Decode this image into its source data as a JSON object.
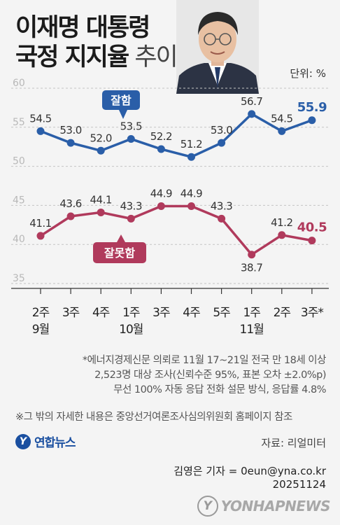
{
  "title": {
    "line1": "이재명 대통령",
    "line2_bold": "국정 지지율",
    "line2_light": "추이"
  },
  "unit": "단위: %",
  "chart_data": {
    "type": "line",
    "categories": [
      "2주",
      "3주",
      "4주",
      "1주",
      "3주",
      "4주",
      "5주",
      "1주",
      "2주",
      "3주*"
    ],
    "month_labels": [
      {
        "label": "9월",
        "index": 0
      },
      {
        "label": "10월",
        "index": 3
      },
      {
        "label": "11월",
        "index": 7
      }
    ],
    "y_ticks": [
      60,
      55,
      50,
      45,
      40,
      35
    ],
    "ylim": [
      35,
      60
    ],
    "grid": "dashed horizontal",
    "series": [
      {
        "name": "잘함",
        "color": "#2a5ea8",
        "values": [
          54.5,
          53.0,
          52.0,
          53.5,
          52.2,
          51.2,
          53.0,
          56.7,
          54.5,
          55.9
        ]
      },
      {
        "name": "잘못함",
        "color": "#b03a5c",
        "values": [
          41.1,
          43.6,
          44.1,
          43.3,
          44.9,
          44.9,
          43.3,
          38.7,
          41.2,
          40.5
        ]
      }
    ]
  },
  "notes": [
    "*에너지경제신문 의뢰로 11월 17~21일 전국 만 18세 이상",
    "2,523명 대상 조사(신뢰수준 95%, 표본 오차 ±2.0%p)",
    "무선 100% 자동 응답 전화 설문 방식, 응답률 4.8%"
  ],
  "reference": "※그 밖의 자세한 내용은 중앙선거여론조사심의위원회 홈페이지 참조",
  "logo_text": "연합뉴스",
  "source": "자료: 리얼미터",
  "reporter": "김영은 기자 = 0eun@yna.co.kr",
  "date": "20251124",
  "watermark": "YONHAPNEWS"
}
